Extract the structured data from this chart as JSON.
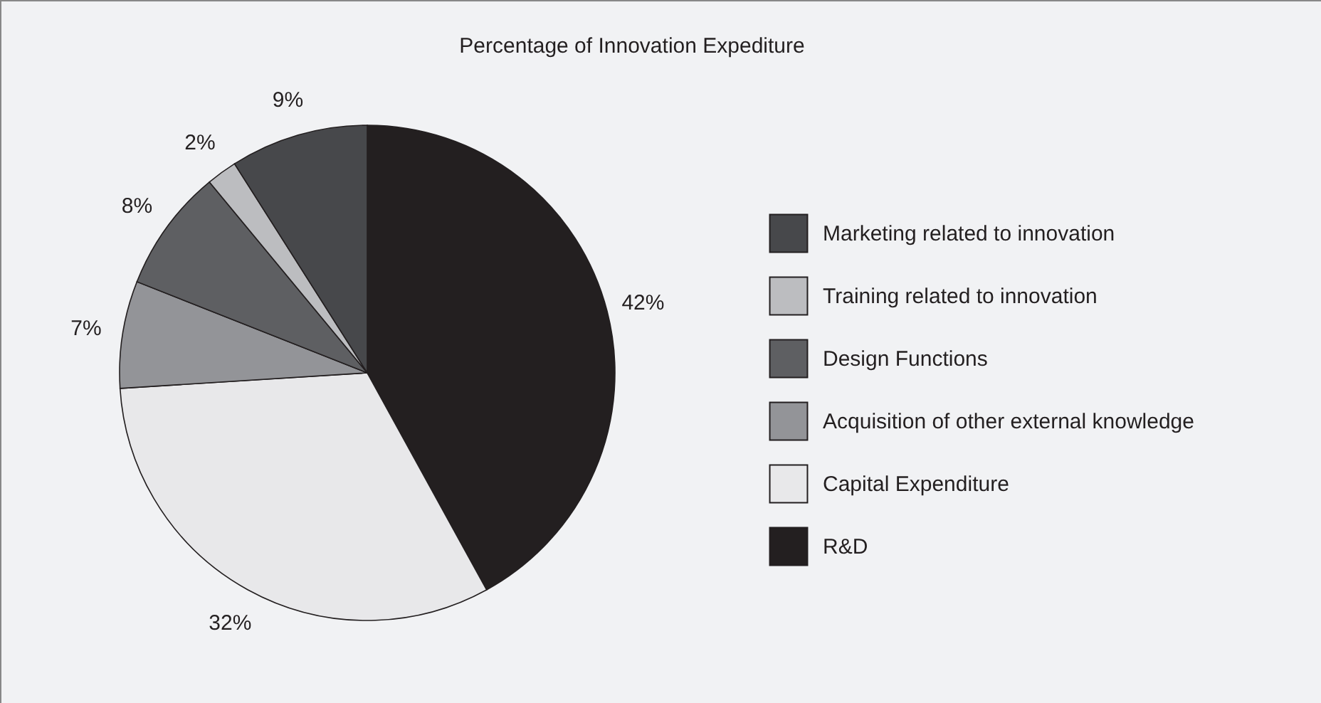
{
  "chart_data": {
    "type": "pie",
    "title": "Percentage of Innovation Expediture",
    "categories": [
      "R&D",
      "Capital Expenditure",
      "Acquisition of other external knowledge",
      "Design Functions",
      "Training related to innovation",
      "Marketing related to innovation"
    ],
    "values": [
      42,
      32,
      7,
      8,
      2,
      9
    ],
    "colors": [
      "#231f20",
      "#e8e8ea",
      "#939498",
      "#5e5f62",
      "#bcbdc0",
      "#47484b"
    ],
    "value_labels": [
      "42%",
      "32%",
      "7%",
      "8%",
      "2%",
      "9%"
    ],
    "legend": "right"
  }
}
